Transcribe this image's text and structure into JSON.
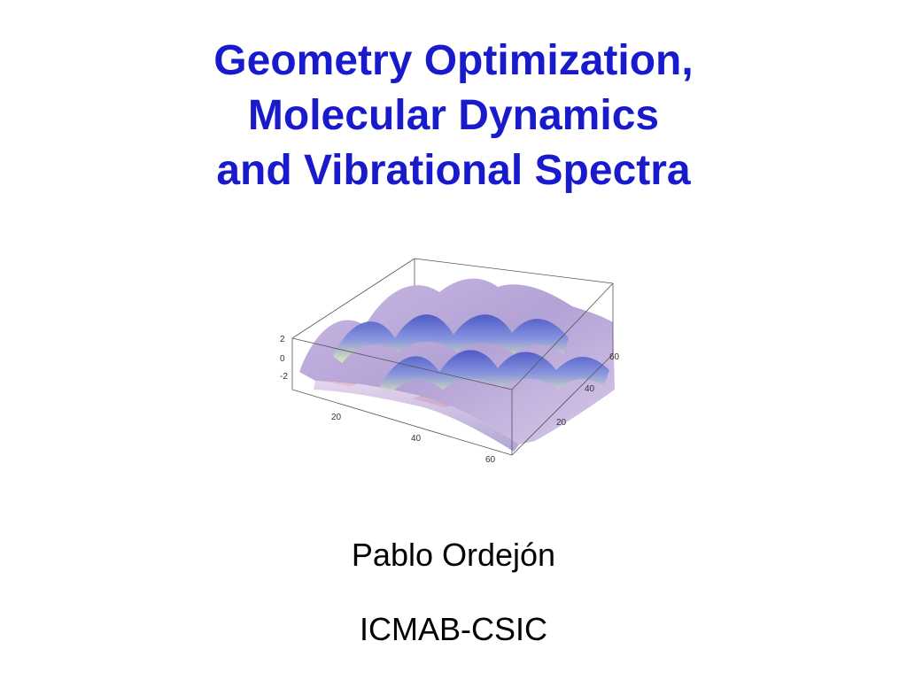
{
  "slide": {
    "title_lines": [
      "Geometry Optimization,",
      "Molecular Dynamics",
      "and Vibrational Spectra"
    ],
    "author": "Pablo Ordejón",
    "affiliation": "ICMAB-CSIC"
  },
  "figure": {
    "z_ticks": [
      "2",
      "0",
      "-2"
    ],
    "x_ticks": [
      "20",
      "40",
      "60"
    ],
    "y_ticks": [
      "20",
      "40",
      "60"
    ],
    "colors": {
      "surface_top": "#b9a6d9",
      "surface_crest": "#5566cc",
      "surface_low": "#cc2211",
      "highlight": "#eef8a8"
    }
  }
}
